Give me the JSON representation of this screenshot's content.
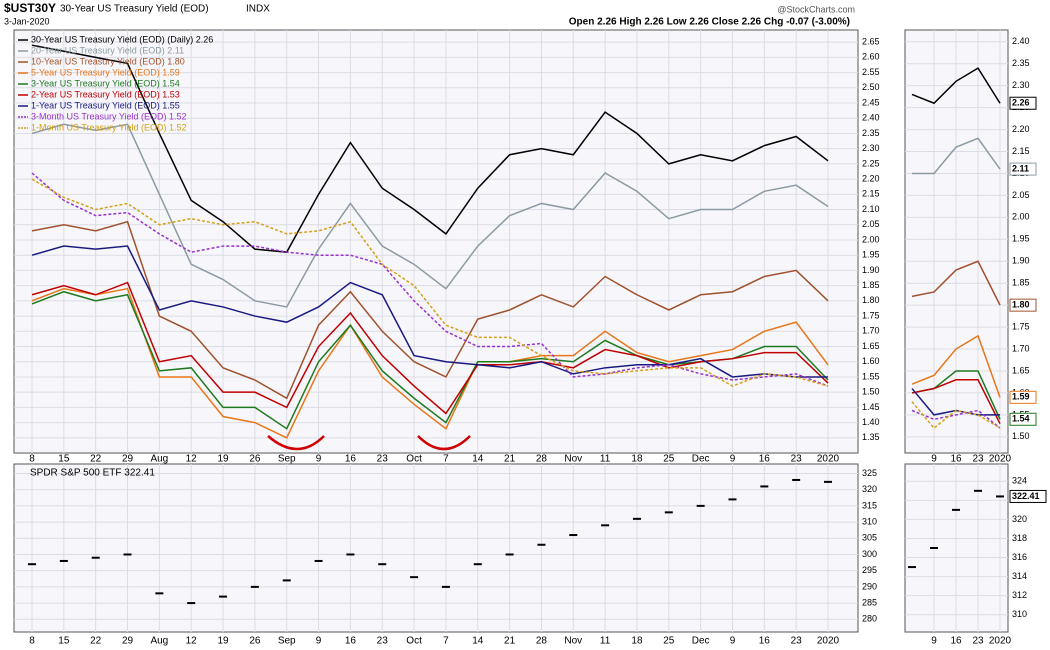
{
  "header": {
    "symbol": "$UST30Y",
    "name": "30-Year US Treasury Yield (EOD)",
    "exchange": "INDX",
    "date": "3-Jan-2020",
    "quote": "Open 2.26  High 2.26  Low 2.26  Close 2.26  Chg -0.07 (-3.00%)",
    "watermark": "@StockCharts.com"
  },
  "chart_data": [
    {
      "type": "line",
      "categories": [
        "8",
        "15",
        "22",
        "29",
        "Aug",
        "12",
        "19",
        "26",
        "Sep",
        "9",
        "16",
        "23",
        "Oct",
        "7",
        "14",
        "21",
        "28",
        "Nov",
        "11",
        "18",
        "25",
        "Dec",
        "9",
        "16",
        "23",
        "2020"
      ],
      "ylim": [
        1.31,
        2.68
      ],
      "yticks": [
        2.65,
        {
          "value": 2.6,
          "label": "2.60"
        },
        2.55,
        {
          "value": 2.5,
          "label": "2.50"
        },
        2.45,
        {
          "value": 2.4,
          "label": "2.40"
        },
        2.35,
        {
          "value": 2.3,
          "label": "2.30"
        },
        2.25,
        {
          "value": 2.2,
          "label": "2.20"
        },
        2.15,
        {
          "value": 2.1,
          "label": "2.10"
        },
        2.05,
        {
          "value": 2.0,
          "label": "2.00"
        },
        1.95,
        {
          "value": 1.9,
          "label": "1.90"
        },
        1.85,
        {
          "value": 1.8,
          "label": "1.80"
        },
        1.75,
        {
          "value": 1.7,
          "label": "1.70"
        },
        1.65,
        {
          "value": 1.6,
          "label": "1.60"
        },
        1.55,
        {
          "value": 1.5,
          "label": "1.50"
        },
        1.45,
        {
          "value": 1.4,
          "label": "1.40"
        },
        1.35
      ],
      "grid": true,
      "series": [
        {
          "name": "30-Year US Treasury Yield (EOD) (Daily) 2.26",
          "color": "#000000",
          "style": "solid",
          "value_label": "2.26",
          "values": [
            2.64,
            2.62,
            2.6,
            2.58,
            2.35,
            2.13,
            2.06,
            1.97,
            1.96,
            2.15,
            2.32,
            2.17,
            2.1,
            2.02,
            2.17,
            2.28,
            2.3,
            2.28,
            2.42,
            2.35,
            2.25,
            2.28,
            2.26,
            2.31,
            2.34,
            2.26
          ]
        },
        {
          "name": "20-Year US Treasury Yield (EOD) 2.11",
          "color": "#8c9ba3",
          "style": "solid",
          "value_label": "2.11",
          "values": [
            2.35,
            2.38,
            2.36,
            2.38,
            2.15,
            1.92,
            1.87,
            1.8,
            1.78,
            1.97,
            2.12,
            1.98,
            1.92,
            1.84,
            1.98,
            2.08,
            2.12,
            2.1,
            2.22,
            2.16,
            2.07,
            2.1,
            2.1,
            2.16,
            2.18,
            2.11
          ]
        },
        {
          "name": "10-Year US Treasury Yield (EOD) 1.80",
          "color": "#a0522d",
          "style": "solid",
          "value_label": "1.80",
          "values": [
            2.03,
            2.05,
            2.03,
            2.06,
            1.75,
            1.7,
            1.58,
            1.54,
            1.48,
            1.72,
            1.83,
            1.7,
            1.6,
            1.55,
            1.74,
            1.77,
            1.82,
            1.78,
            1.88,
            1.82,
            1.77,
            1.82,
            1.83,
            1.88,
            1.9,
            1.8
          ]
        },
        {
          "name": "5-Year US Treasury Yield (EOD) 1.59",
          "color": "#e8761a",
          "style": "solid",
          "value_label": "1.59",
          "values": [
            1.8,
            1.84,
            1.82,
            1.84,
            1.55,
            1.55,
            1.42,
            1.4,
            1.35,
            1.57,
            1.72,
            1.55,
            1.46,
            1.38,
            1.6,
            1.6,
            1.62,
            1.62,
            1.7,
            1.63,
            1.6,
            1.62,
            1.64,
            1.7,
            1.73,
            1.59
          ]
        },
        {
          "name": "3-Year US Treasury Yield (EOD) 1.54",
          "color": "#1e7a1e",
          "style": "solid",
          "value_label": "1.54",
          "values": [
            1.79,
            1.83,
            1.8,
            1.82,
            1.57,
            1.58,
            1.45,
            1.45,
            1.38,
            1.6,
            1.72,
            1.57,
            1.48,
            1.4,
            1.6,
            1.6,
            1.61,
            1.6,
            1.67,
            1.62,
            1.59,
            1.6,
            1.61,
            1.65,
            1.65,
            1.54
          ]
        },
        {
          "name": "2-Year US Treasury Yield (EOD) 1.53",
          "color": "#c00000",
          "style": "solid",
          "values": [
            1.82,
            1.85,
            1.82,
            1.86,
            1.6,
            1.62,
            1.5,
            1.5,
            1.45,
            1.65,
            1.76,
            1.62,
            1.52,
            1.43,
            1.59,
            1.59,
            1.6,
            1.58,
            1.64,
            1.62,
            1.58,
            1.6,
            1.61,
            1.63,
            1.63,
            1.53
          ]
        },
        {
          "name": "1-Year US Treasury Yield (EOD) 1.55",
          "color": "#1a1a80",
          "style": "solid",
          "values": [
            1.95,
            1.98,
            1.97,
            1.98,
            1.77,
            1.8,
            1.78,
            1.75,
            1.73,
            1.78,
            1.86,
            1.82,
            1.62,
            1.6,
            1.59,
            1.58,
            1.6,
            1.56,
            1.58,
            1.59,
            1.59,
            1.61,
            1.55,
            1.56,
            1.55,
            1.55
          ]
        },
        {
          "name": "3-Month US Treasury Yield (EOD) 1.52",
          "color": "#9932cc",
          "style": "dotted",
          "values": [
            2.22,
            2.13,
            2.08,
            2.09,
            2.02,
            1.96,
            1.98,
            1.98,
            1.96,
            1.95,
            1.95,
            1.92,
            1.8,
            1.7,
            1.65,
            1.65,
            1.66,
            1.55,
            1.56,
            1.58,
            1.59,
            1.56,
            1.54,
            1.55,
            1.56,
            1.52
          ]
        },
        {
          "name": "1-Month US Treasury Yield (EOD) 1.52",
          "color": "#d4a017",
          "style": "dotted",
          "values": [
            2.2,
            2.14,
            2.1,
            2.12,
            2.05,
            2.07,
            2.05,
            2.06,
            2.02,
            2.03,
            2.06,
            1.92,
            1.85,
            1.72,
            1.68,
            1.68,
            1.62,
            1.57,
            1.56,
            1.57,
            1.58,
            1.58,
            1.52,
            1.56,
            1.55,
            1.52
          ]
        }
      ]
    },
    {
      "type": "price",
      "title": "SPDR S&P 500 ETF 322.41",
      "color": "#000000",
      "ylim": [
        277,
        327
      ],
      "yticks": [
        325,
        320,
        315,
        310,
        305,
        300,
        295,
        290,
        285,
        280
      ],
      "grid": true,
      "values": [
        297,
        298,
        299,
        300,
        288,
        285,
        287,
        290,
        292,
        298,
        300,
        297,
        293,
        290,
        297,
        300,
        303,
        306,
        309,
        311,
        313,
        315,
        317,
        321,
        323,
        322.41
      ],
      "value_label": "322.41"
    },
    {
      "type": "zoom",
      "ylim": [
        1.47,
        2.42
      ],
      "yticks": [
        {
          "value": 2.4,
          "label": "2.40"
        },
        2.35,
        {
          "value": 2.3,
          "label": "2.30"
        },
        2.25,
        {
          "value": 2.2,
          "label": "2.20"
        },
        2.15,
        {
          "value": 2.1,
          "label": "2.10"
        },
        2.05,
        {
          "value": 2.0,
          "label": "2.00"
        },
        1.95,
        {
          "value": 1.9,
          "label": "1.90"
        },
        1.85,
        {
          "value": 1.8,
          "label": "1.80"
        },
        1.75,
        {
          "value": 1.7,
          "label": "1.70"
        },
        1.65,
        {
          "value": 1.6,
          "label": "1.60"
        },
        1.55,
        {
          "value": 1.5,
          "label": "1.50"
        }
      ]
    },
    {
      "type": "zoom",
      "ylim": [
        308.5,
        325.5
      ],
      "yticks": [
        324,
        322,
        320,
        318,
        316,
        314,
        312,
        310
      ]
    }
  ]
}
